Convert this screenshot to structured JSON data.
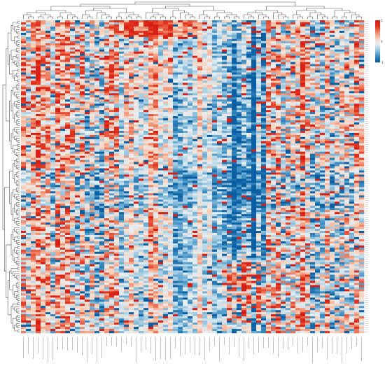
{
  "chart_data": {
    "type": "heatmap",
    "title": "",
    "xlabel": "",
    "ylabel": "",
    "n_rows": 150,
    "n_cols": 70,
    "value_range": [
      -1,
      1
    ],
    "colormap": [
      "#0a5fa3",
      "#3c8fc4",
      "#9cc8e0",
      "#e6eff4",
      "#fbd0b8",
      "#f08a6c",
      "#e3361f",
      "#d71f15"
    ],
    "column_groups": [
      {
        "start": 0,
        "end": 9,
        "tendency": 0.05,
        "spread": 0.6
      },
      {
        "start": 10,
        "end": 19,
        "tendency": -0.15,
        "spread": 0.7
      },
      {
        "start": 20,
        "end": 29,
        "tendency": -0.1,
        "spread": 0.45
      },
      {
        "start": 30,
        "end": 40,
        "tendency": -0.3,
        "spread": 0.35
      },
      {
        "start": 41,
        "end": 49,
        "tendency": -0.45,
        "spread": 0.5
      },
      {
        "start": 50,
        "end": 59,
        "tendency": 0.05,
        "spread": 0.7
      },
      {
        "start": 60,
        "end": 69,
        "tendency": 0.0,
        "spread": 0.65
      }
    ],
    "row_dendrogram": true,
    "column_dendrogram": true,
    "column_labels_visible": false,
    "row_labels_visible": false,
    "colorbar": {
      "ticks": [
        "1",
        "0",
        "-1"
      ]
    }
  }
}
